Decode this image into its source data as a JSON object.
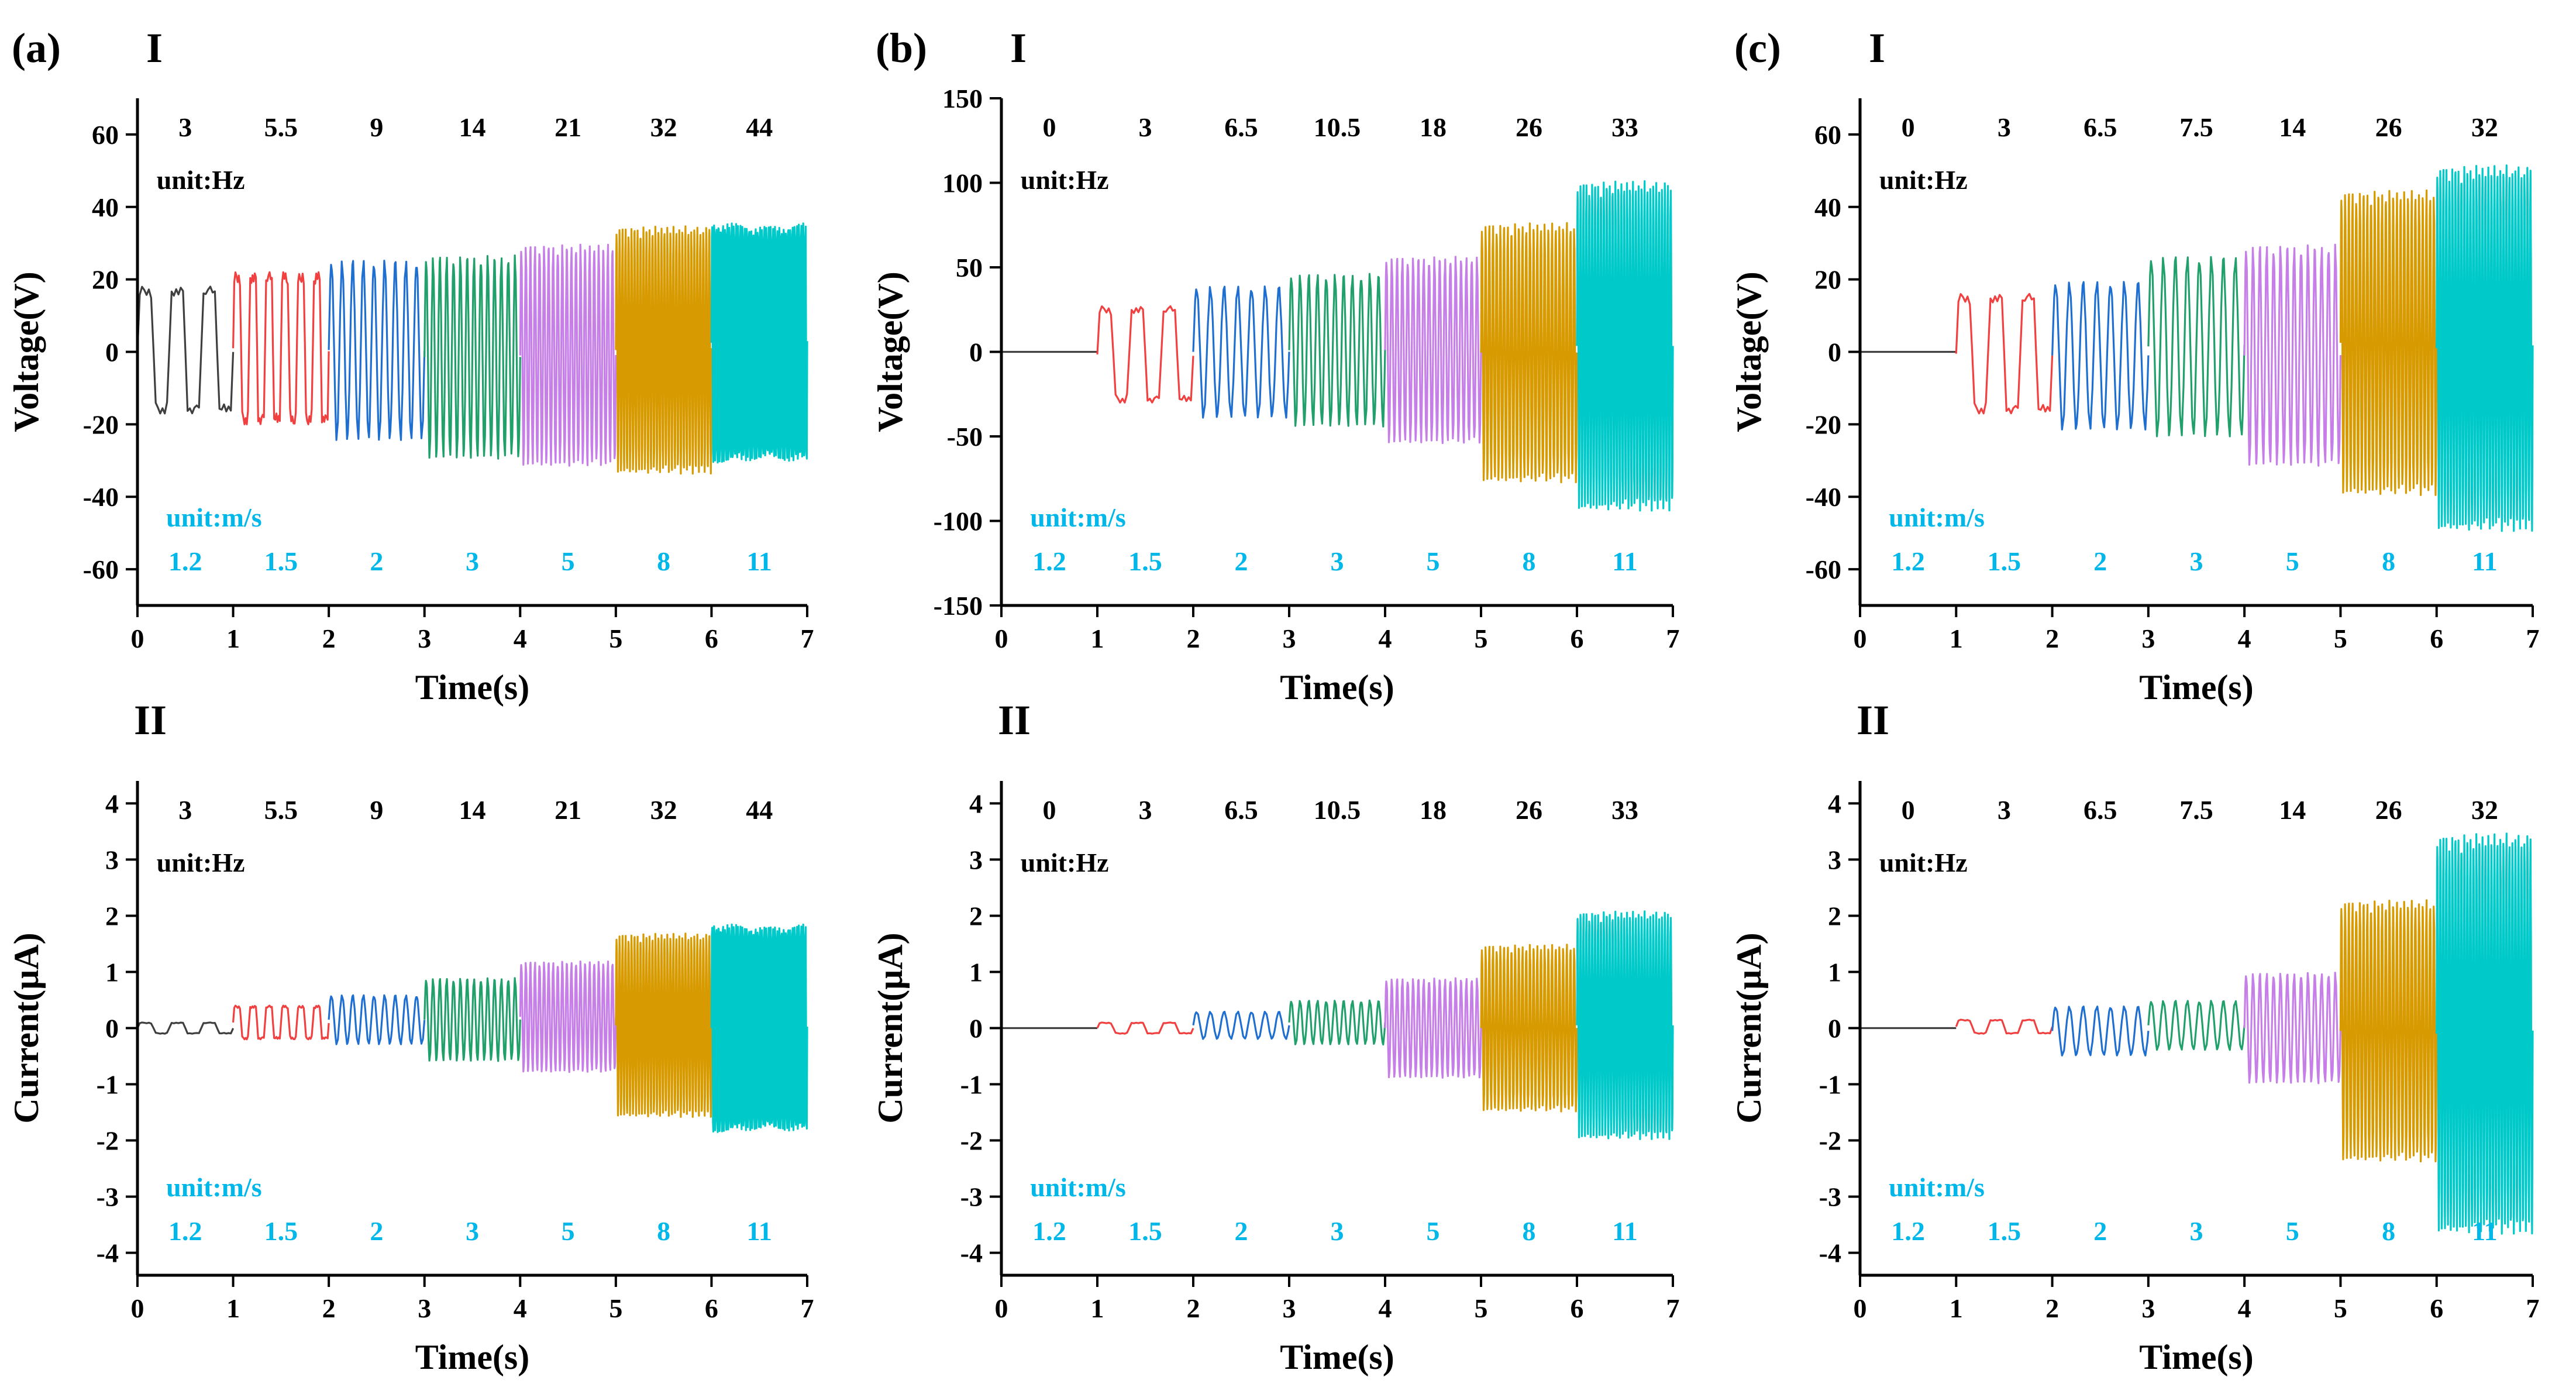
{
  "figure": {
    "unit_hz_label": "unit:Hz",
    "unit_ms_label": "unit:m/s",
    "colors": {
      "segments": [
        "#3f3f3f",
        "#f04040",
        "#1f6fd0",
        "#22a06b",
        "#c57fe6",
        "#d79a00",
        "#00c9c9"
      ],
      "blue_text": "#00b7ea",
      "black": "#000000"
    }
  },
  "chart_data": [
    {
      "panel": "(a)",
      "row": "I",
      "type": "line",
      "xlabel": "Time(s)",
      "ylabel": "Voltage(V)",
      "xlim": [
        0,
        7
      ],
      "ylim": [
        -70,
        70
      ],
      "xticks": [
        0,
        1,
        2,
        3,
        4,
        5,
        6,
        7
      ],
      "yticks": [
        -60,
        -40,
        -20,
        0,
        20,
        40,
        60
      ],
      "ytick_labels": [
        "-60",
        "-40",
        "-20",
        "0",
        "20",
        "40",
        "60"
      ],
      "freq_labels": [
        "3",
        "5.5",
        "9",
        "14",
        "21",
        "32",
        "44"
      ],
      "speed_labels": [
        "1.2",
        "1.5",
        "2",
        "3",
        "5",
        "8",
        "11"
      ],
      "segments": [
        {
          "t": [
            0,
            1
          ],
          "freq": 3,
          "speed": 1.2,
          "min": -17,
          "max": 18
        },
        {
          "t": [
            1,
            2
          ],
          "freq": 5.5,
          "speed": 1.5,
          "min": -20,
          "max": 22
        },
        {
          "t": [
            2,
            3
          ],
          "freq": 9,
          "speed": 2,
          "min": -25,
          "max": 26
        },
        {
          "t": [
            3,
            4
          ],
          "freq": 14,
          "speed": 3,
          "min": -30,
          "max": 27
        },
        {
          "t": [
            4,
            5
          ],
          "freq": 21,
          "speed": 5,
          "min": -32,
          "max": 30
        },
        {
          "t": [
            5,
            6
          ],
          "freq": 32,
          "speed": 8,
          "min": -34,
          "max": 35
        },
        {
          "t": [
            6,
            7
          ],
          "freq": 44,
          "speed": 11,
          "min": -35,
          "max": 40
        }
      ]
    },
    {
      "panel": "(b)",
      "row": "I",
      "type": "line",
      "xlabel": "Time(s)",
      "ylabel": "Voltage(V)",
      "xlim": [
        0,
        7
      ],
      "ylim": [
        -150,
        150
      ],
      "xticks": [
        0,
        1,
        2,
        3,
        4,
        5,
        6,
        7
      ],
      "yticks": [
        -150,
        -100,
        -50,
        0,
        50,
        100,
        150
      ],
      "ytick_labels": [
        "-150",
        "-100",
        "-50",
        "0",
        "50",
        "100",
        "150"
      ],
      "freq_labels": [
        "0",
        "3",
        "6.5",
        "10.5",
        "18",
        "26",
        "33"
      ],
      "speed_labels": [
        "1.2",
        "1.5",
        "2",
        "3",
        "5",
        "8",
        "11"
      ],
      "segments": [
        {
          "t": [
            0,
            1
          ],
          "freq": 0,
          "speed": 1.2,
          "min": 0,
          "max": 0
        },
        {
          "t": [
            1,
            2
          ],
          "freq": 3,
          "speed": 1.5,
          "min": -30,
          "max": 27
        },
        {
          "t": [
            2,
            3
          ],
          "freq": 6.5,
          "speed": 2,
          "min": -40,
          "max": 40
        },
        {
          "t": [
            3,
            4
          ],
          "freq": 10.5,
          "speed": 3,
          "min": -45,
          "max": 47
        },
        {
          "t": [
            4,
            5
          ],
          "freq": 18,
          "speed": 5,
          "min": -55,
          "max": 57
        },
        {
          "t": [
            5,
            6
          ],
          "freq": 26,
          "speed": 8,
          "min": -78,
          "max": 77
        },
        {
          "t": [
            6,
            7
          ],
          "freq": 33,
          "speed": 11,
          "min": -95,
          "max": 102
        }
      ]
    },
    {
      "panel": "(c)",
      "row": "I",
      "type": "line",
      "xlabel": "Time(s)",
      "ylabel": "Voltage(V)",
      "xlim": [
        0,
        7
      ],
      "ylim": [
        -70,
        70
      ],
      "xticks": [
        0,
        1,
        2,
        3,
        4,
        5,
        6,
        7
      ],
      "yticks": [
        -60,
        -40,
        -20,
        0,
        20,
        40,
        60
      ],
      "ytick_labels": [
        "-60",
        "-40",
        "-20",
        "0",
        "20",
        "40",
        "60"
      ],
      "freq_labels": [
        "0",
        "3",
        "6.5",
        "7.5",
        "14",
        "26",
        "32"
      ],
      "speed_labels": [
        "1.2",
        "1.5",
        "2",
        "3",
        "5",
        "8",
        "11"
      ],
      "segments": [
        {
          "t": [
            0,
            1
          ],
          "freq": 0,
          "speed": 1.2,
          "min": 0,
          "max": 0
        },
        {
          "t": [
            1,
            2
          ],
          "freq": 3,
          "speed": 1.5,
          "min": -17,
          "max": 16
        },
        {
          "t": [
            2,
            3
          ],
          "freq": 6.5,
          "speed": 2,
          "min": -22,
          "max": 20
        },
        {
          "t": [
            3,
            4
          ],
          "freq": 7.5,
          "speed": 3,
          "min": -24,
          "max": 27
        },
        {
          "t": [
            4,
            5
          ],
          "freq": 14,
          "speed": 5,
          "min": -32,
          "max": 30
        },
        {
          "t": [
            5,
            6
          ],
          "freq": 26,
          "speed": 8,
          "min": -40,
          "max": 45
        },
        {
          "t": [
            6,
            7
          ],
          "freq": 32,
          "speed": 11,
          "min": -50,
          "max": 52
        }
      ]
    },
    {
      "panel": "(a)",
      "row": "II",
      "type": "line",
      "xlabel": "Time(s)",
      "ylabel": "Current(μA)",
      "xlim": [
        0,
        7
      ],
      "ylim": [
        -4.4,
        4.4
      ],
      "xticks": [
        0,
        1,
        2,
        3,
        4,
        5,
        6,
        7
      ],
      "yticks": [
        -4,
        -3,
        -2,
        -1,
        0,
        1,
        2,
        3,
        4
      ],
      "ytick_labels": [
        "-4",
        "-3",
        "-2",
        "-1",
        "0",
        "1",
        "2",
        "3",
        "4"
      ],
      "freq_labels": [
        "3",
        "5.5",
        "9",
        "14",
        "21",
        "32",
        "44"
      ],
      "speed_labels": [
        "1.2",
        "1.5",
        "2",
        "3",
        "5",
        "8",
        "11"
      ],
      "segments": [
        {
          "t": [
            0,
            1
          ],
          "freq": 3,
          "speed": 1.2,
          "min": -0.1,
          "max": 0.1
        },
        {
          "t": [
            1,
            2
          ],
          "freq": 5.5,
          "speed": 1.5,
          "min": -0.2,
          "max": 0.4
        },
        {
          "t": [
            2,
            3
          ],
          "freq": 9,
          "speed": 2,
          "min": -0.3,
          "max": 0.6
        },
        {
          "t": [
            3,
            4
          ],
          "freq": 14,
          "speed": 3,
          "min": -0.6,
          "max": 0.9
        },
        {
          "t": [
            4,
            5
          ],
          "freq": 21,
          "speed": 5,
          "min": -0.8,
          "max": 1.2
        },
        {
          "t": [
            5,
            6
          ],
          "freq": 32,
          "speed": 8,
          "min": -1.6,
          "max": 1.7
        },
        {
          "t": [
            6,
            7
          ],
          "freq": 44,
          "speed": 11,
          "min": -2.1,
          "max": 2.1
        }
      ]
    },
    {
      "panel": "(b)",
      "row": "II",
      "type": "line",
      "xlabel": "Time(s)",
      "ylabel": "Current(μA)",
      "xlim": [
        0,
        7
      ],
      "ylim": [
        -4.4,
        4.4
      ],
      "xticks": [
        0,
        1,
        2,
        3,
        4,
        5,
        6,
        7
      ],
      "yticks": [
        -4,
        -3,
        -2,
        -1,
        0,
        1,
        2,
        3,
        4
      ],
      "ytick_labels": [
        "-4",
        "-3",
        "-2",
        "-1",
        "0",
        "1",
        "2",
        "3",
        "4"
      ],
      "freq_labels": [
        "0",
        "3",
        "6.5",
        "10.5",
        "18",
        "26",
        "33"
      ],
      "speed_labels": [
        "1.2",
        "1.5",
        "2",
        "3",
        "5",
        "8",
        "11"
      ],
      "segments": [
        {
          "t": [
            0,
            1
          ],
          "freq": 0,
          "speed": 1.2,
          "min": 0,
          "max": 0
        },
        {
          "t": [
            1,
            2
          ],
          "freq": 3,
          "speed": 1.5,
          "min": -0.1,
          "max": 0.1
        },
        {
          "t": [
            2,
            3
          ],
          "freq": 6.5,
          "speed": 2,
          "min": -0.2,
          "max": 0.3
        },
        {
          "t": [
            3,
            4
          ],
          "freq": 10.5,
          "speed": 3,
          "min": -0.3,
          "max": 0.5
        },
        {
          "t": [
            4,
            5
          ],
          "freq": 18,
          "speed": 5,
          "min": -0.9,
          "max": 0.9
        },
        {
          "t": [
            5,
            6
          ],
          "freq": 26,
          "speed": 8,
          "min": -1.5,
          "max": 1.5
        },
        {
          "t": [
            6,
            7
          ],
          "freq": 33,
          "speed": 11,
          "min": -2.0,
          "max": 2.1
        }
      ]
    },
    {
      "panel": "(c)",
      "row": "II",
      "type": "line",
      "xlabel": "Time(s)",
      "ylabel": "Current(μA)",
      "xlim": [
        0,
        7
      ],
      "ylim": [
        -4.4,
        4.4
      ],
      "xticks": [
        0,
        1,
        2,
        3,
        4,
        5,
        6,
        7
      ],
      "yticks": [
        -4,
        -3,
        -2,
        -1,
        0,
        1,
        2,
        3,
        4
      ],
      "ytick_labels": [
        "-4",
        "-3",
        "-2",
        "-1",
        "0",
        "1",
        "2",
        "3",
        "4"
      ],
      "freq_labels": [
        "0",
        "3",
        "6.5",
        "7.5",
        "14",
        "26",
        "32"
      ],
      "speed_labels": [
        "1.2",
        "1.5",
        "2",
        "3",
        "5",
        "8",
        "11"
      ],
      "segments": [
        {
          "t": [
            0,
            1
          ],
          "freq": 0,
          "speed": 1.2,
          "min": 0,
          "max": 0
        },
        {
          "t": [
            1,
            2
          ],
          "freq": 3,
          "speed": 1.5,
          "min": -0.1,
          "max": 0.15
        },
        {
          "t": [
            2,
            3
          ],
          "freq": 6.5,
          "speed": 2,
          "min": -0.5,
          "max": 0.4
        },
        {
          "t": [
            3,
            4
          ],
          "freq": 7.5,
          "speed": 3,
          "min": -0.4,
          "max": 0.5
        },
        {
          "t": [
            4,
            5
          ],
          "freq": 14,
          "speed": 5,
          "min": -1.0,
          "max": 1.0
        },
        {
          "t": [
            5,
            6
          ],
          "freq": 26,
          "speed": 8,
          "min": -2.4,
          "max": 2.3
        },
        {
          "t": [
            6,
            7
          ],
          "freq": 32,
          "speed": 11,
          "min": -3.7,
          "max": 3.5
        }
      ]
    }
  ]
}
